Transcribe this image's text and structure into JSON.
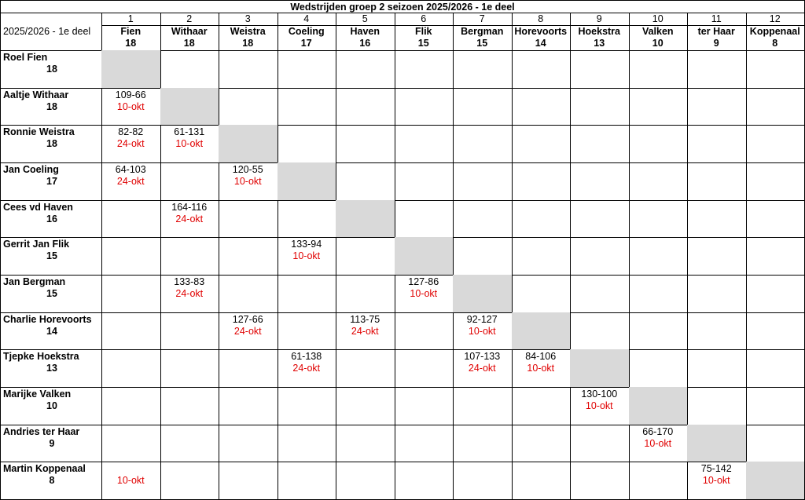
{
  "title": "Wedstrijden groep 2 seizoen 2025/2026 - 1e deel",
  "corner": "2025/2026 - 1e deel",
  "columns": [
    {
      "number": 1,
      "name": "Fien",
      "score": 18
    },
    {
      "number": 2,
      "name": "Withaar",
      "score": 18
    },
    {
      "number": 3,
      "name": "Weistra",
      "score": 18
    },
    {
      "number": 4,
      "name": "Coeling",
      "score": 17
    },
    {
      "number": 5,
      "name": "Haven",
      "score": 16
    },
    {
      "number": 6,
      "name": "Flik",
      "score": 15
    },
    {
      "number": 7,
      "name": "Bergman",
      "score": 15
    },
    {
      "number": 8,
      "name": "Horevoorts",
      "score": 14
    },
    {
      "number": 9,
      "name": "Hoekstra",
      "score": 13
    },
    {
      "number": 10,
      "name": "Valken",
      "score": 10
    },
    {
      "number": 11,
      "name": "ter Haar",
      "score": 9
    },
    {
      "number": 12,
      "name": "Koppenaal",
      "score": 8
    }
  ],
  "rows": [
    {
      "name": "Roel Fien",
      "score": 18,
      "cells": [
        null,
        null,
        null,
        null,
        null,
        null,
        null,
        null,
        null,
        null,
        null,
        null
      ]
    },
    {
      "name": "Aaltje Withaar",
      "score": 18,
      "cells": [
        {
          "result": "109-66",
          "date": "10-okt"
        },
        null,
        null,
        null,
        null,
        null,
        null,
        null,
        null,
        null,
        null,
        null
      ]
    },
    {
      "name": "Ronnie Weistra",
      "score": 18,
      "cells": [
        {
          "result": "82-82",
          "date": "24-okt"
        },
        {
          "result": "61-131",
          "date": "10-okt"
        },
        null,
        null,
        null,
        null,
        null,
        null,
        null,
        null,
        null,
        null
      ]
    },
    {
      "name": "Jan Coeling",
      "score": 17,
      "cells": [
        {
          "result": "64-103",
          "date": "24-okt"
        },
        null,
        {
          "result": "120-55",
          "date": "10-okt"
        },
        null,
        null,
        null,
        null,
        null,
        null,
        null,
        null,
        null
      ]
    },
    {
      "name": "Cees vd Haven",
      "score": 16,
      "cells": [
        null,
        {
          "result": "164-116",
          "date": "24-okt"
        },
        null,
        null,
        null,
        null,
        null,
        null,
        null,
        null,
        null,
        null
      ]
    },
    {
      "name": "Gerrit Jan Flik",
      "score": 15,
      "cells": [
        null,
        null,
        null,
        {
          "result": "133-94",
          "date": "10-okt"
        },
        null,
        null,
        null,
        null,
        null,
        null,
        null,
        null
      ]
    },
    {
      "name": "Jan Bergman",
      "score": 15,
      "cells": [
        null,
        {
          "result": "133-83",
          "date": "24-okt"
        },
        null,
        null,
        null,
        {
          "result": "127-86",
          "date": "10-okt"
        },
        null,
        null,
        null,
        null,
        null,
        null
      ]
    },
    {
      "name": "Charlie Horevoorts",
      "score": 14,
      "cells": [
        null,
        null,
        {
          "result": "127-66",
          "date": "24-okt"
        },
        null,
        {
          "result": "113-75",
          "date": "24-okt"
        },
        null,
        {
          "result": "92-127",
          "date": "10-okt"
        },
        null,
        null,
        null,
        null,
        null
      ]
    },
    {
      "name": "Tjepke Hoekstra",
      "score": 13,
      "cells": [
        null,
        null,
        null,
        {
          "result": "61-138",
          "date": "24-okt"
        },
        null,
        null,
        {
          "result": "107-133",
          "date": "24-okt"
        },
        {
          "result": "84-106",
          "date": "10-okt"
        },
        null,
        null,
        null,
        null
      ]
    },
    {
      "name": "Marijke Valken",
      "score": 10,
      "cells": [
        null,
        null,
        null,
        null,
        null,
        null,
        null,
        null,
        {
          "result": "130-100",
          "date": "10-okt"
        },
        null,
        null,
        null
      ]
    },
    {
      "name": "Andries ter Haar",
      "score": 9,
      "cells": [
        null,
        null,
        null,
        null,
        null,
        null,
        null,
        null,
        null,
        {
          "result": "66-170",
          "date": "10-okt"
        },
        null,
        null
      ]
    },
    {
      "name": "Martin Koppenaal",
      "score": 8,
      "cells": [
        {
          "date": "10-okt"
        },
        null,
        null,
        null,
        null,
        null,
        null,
        null,
        null,
        null,
        {
          "result": "75-142",
          "date": "10-okt"
        },
        null
      ]
    }
  ]
}
